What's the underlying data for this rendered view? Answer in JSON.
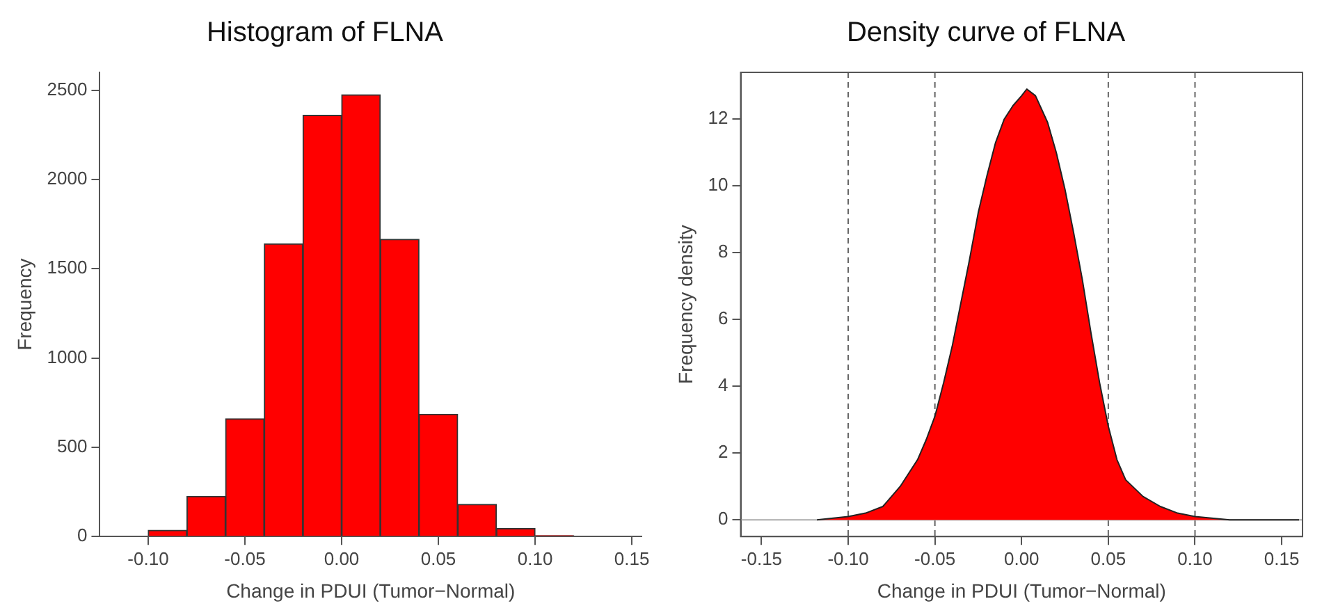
{
  "chart_data": [
    {
      "type": "histogram",
      "title": "Histogram of FLNA",
      "xlabel": "Change in PDUI (Tumor−Normal)",
      "ylabel": "Frequency",
      "bins": [
        -0.1,
        -0.08,
        -0.06,
        -0.04,
        -0.02,
        0,
        0.02,
        0.04,
        0.06,
        0.08,
        0.1,
        0.12
      ],
      "values": [
        35,
        225,
        660,
        1640,
        2360,
        2475,
        1665,
        685,
        180,
        45,
        5
      ],
      "color": "#ff0000",
      "xlim": [
        -0.125,
        0.155
      ],
      "xticks": [
        {
          "value": -0.1,
          "label": "-0.10"
        },
        {
          "value": -0.05,
          "label": "-0.05"
        },
        {
          "value": 0,
          "label": "0.00"
        },
        {
          "value": 0.05,
          "label": "0.05"
        },
        {
          "value": 0.1,
          "label": "0.10"
        },
        {
          "value": 0.15,
          "label": "0.15"
        }
      ],
      "ylim": [
        0,
        2600
      ],
      "yticks": [
        0,
        500,
        1000,
        1500,
        2000,
        2500
      ],
      "grid": false,
      "legend": false
    },
    {
      "type": "area",
      "title": "Density curve of FLNA",
      "xlabel": "Change in PDUI (Tumor−Normal)",
      "ylabel": "Frequency density",
      "x": [
        -0.118,
        -0.1,
        -0.09,
        -0.08,
        -0.07,
        -0.065,
        -0.06,
        -0.055,
        -0.05,
        -0.045,
        -0.04,
        -0.035,
        -0.03,
        -0.025,
        -0.02,
        -0.015,
        -0.01,
        -0.005,
        0,
        0.003,
        0.008,
        0.015,
        0.02,
        0.025,
        0.03,
        0.035,
        0.04,
        0.045,
        0.05,
        0.055,
        0.06,
        0.07,
        0.08,
        0.09,
        0.1,
        0.12,
        0.16
      ],
      "values": [
        0,
        0.1,
        0.2,
        0.4,
        1.0,
        1.4,
        1.8,
        2.4,
        3.1,
        4.1,
        5.2,
        6.5,
        7.8,
        9.2,
        10.3,
        11.3,
        12.0,
        12.4,
        12.7,
        12.9,
        12.7,
        11.9,
        11.0,
        9.9,
        8.6,
        7.2,
        5.6,
        4.1,
        2.8,
        1.8,
        1.2,
        0.7,
        0.4,
        0.2,
        0.1,
        0,
        0
      ],
      "color": "#ff0000",
      "xlim": [
        -0.162,
        0.162
      ],
      "xticks": [
        {
          "value": -0.15,
          "label": "-0.15"
        },
        {
          "value": -0.1,
          "label": "-0.10"
        },
        {
          "value": -0.05,
          "label": "-0.05"
        },
        {
          "value": 0,
          "label": "0.00"
        },
        {
          "value": 0.05,
          "label": "0.05"
        },
        {
          "value": 0.1,
          "label": "0.10"
        },
        {
          "value": 0.15,
          "label": "0.15"
        }
      ],
      "ylim": [
        -0.5,
        13.4
      ],
      "yticks": [
        0,
        2,
        4,
        6,
        8,
        10,
        12
      ],
      "grid": false,
      "legend": false,
      "ref_lines": [
        {
          "axis": "x",
          "value": -0.1,
          "color": "#666666",
          "line_style": "dashed"
        },
        {
          "axis": "x",
          "value": -0.05,
          "color": "#666666",
          "line_style": "dashed"
        },
        {
          "axis": "x",
          "value": 0.05,
          "color": "#666666",
          "line_style": "dashed"
        },
        {
          "axis": "x",
          "value": 0.1,
          "color": "#666666",
          "line_style": "dashed"
        },
        {
          "axis": "y",
          "value": 0,
          "color": "#aaaaaa",
          "line_style": "solid"
        }
      ]
    }
  ]
}
